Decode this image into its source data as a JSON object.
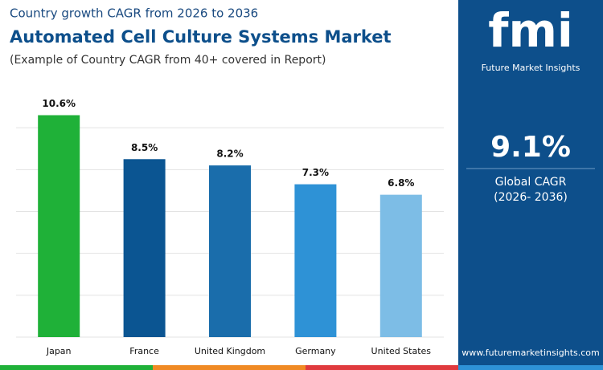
{
  "chart_data": {
    "type": "bar",
    "kicker": "Country growth CAGR from 2026 to 2036",
    "title": "Automated Cell Culture Systems Market",
    "subtitle": "(Example of Country CAGR from 40+ covered in Report)",
    "categories": [
      "Japan",
      "France",
      "United Kingdom",
      "Germany",
      "United States"
    ],
    "values": [
      10.6,
      8.5,
      8.2,
      7.3,
      6.8
    ],
    "value_labels": [
      "10.6%",
      "8.5%",
      "8.2%",
      "7.3%",
      "6.8%"
    ],
    "colors": [
      "#1fb138",
      "#0b5592",
      "#1a6dab",
      "#2e92d6",
      "#7dbde6"
    ],
    "ylim": [
      0,
      12
    ],
    "yticks": [
      0,
      2,
      4,
      6,
      8,
      10
    ],
    "grid": true
  },
  "sidebar": {
    "logo": "fmi",
    "brand": "Future Market Insights",
    "cagr": "9.1%",
    "cagr_label": "Global CAGR",
    "cagr_period": "(2026- 2036)",
    "website": "www.futuremarketinsights.com"
  }
}
